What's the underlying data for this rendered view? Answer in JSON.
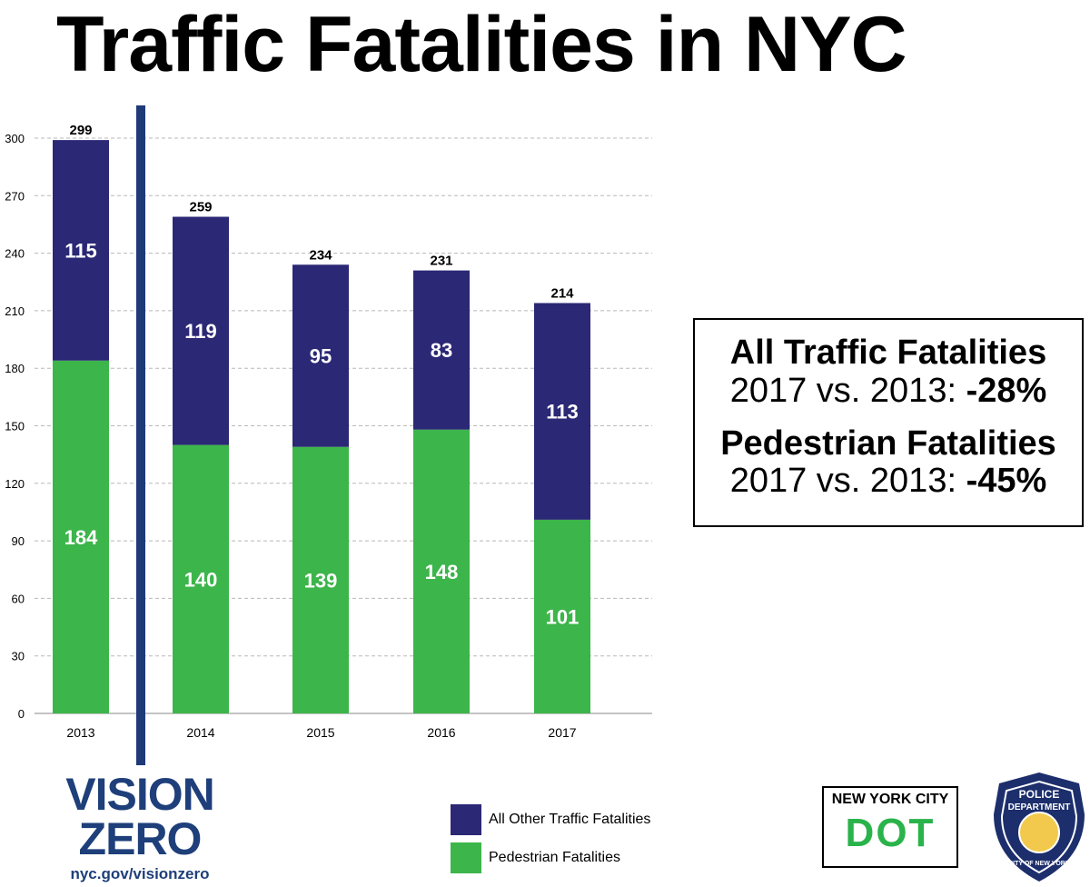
{
  "title": "Traffic Fatalities in NYC",
  "colors": {
    "other": "#2b2875",
    "pedestrian": "#3cb54a",
    "divider": "#1e3a78",
    "grid": "#b8b8b8"
  },
  "chart_data": {
    "type": "bar",
    "stacked": true,
    "categories": [
      "2013",
      "2014",
      "2015",
      "2016",
      "2017"
    ],
    "series": [
      {
        "name": "Pedestrian Fatalities",
        "values": [
          184,
          140,
          139,
          148,
          101
        ]
      },
      {
        "name": "All Other Traffic Fatalities",
        "values": [
          115,
          119,
          95,
          83,
          113
        ]
      }
    ],
    "totals": [
      299,
      259,
      234,
      231,
      214
    ],
    "yticks": [
      "0",
      "30",
      "60",
      "90",
      "120",
      "150",
      "180",
      "210",
      "240",
      "270",
      "300"
    ],
    "ylim": [
      0,
      300
    ],
    "grid": true,
    "divider_after_category": "2013",
    "legend_position": "bottom"
  },
  "stats": {
    "all_title": "All Traffic Fatalities",
    "all_label": "2017 vs. 2013: ",
    "all_value": "-28%",
    "ped_title": "Pedestrian Fatalities",
    "ped_label": "2017 vs. 2013: ",
    "ped_value": "-45%"
  },
  "legend": {
    "other": "All Other Traffic Fatalities",
    "pedestrian": "Pedestrian Fatalities"
  },
  "logos": {
    "vision_zero_line1": "VISION",
    "vision_zero_line2": "ZERO",
    "vision_zero_url": "nyc.gov/visionzero",
    "dot_top": "NEW YORK CITY",
    "dot_word": "DOT",
    "nypd_top": "POLICE",
    "nypd_mid": "DEPARTMENT",
    "nypd_bottom": "CITY OF NEW YORK"
  }
}
